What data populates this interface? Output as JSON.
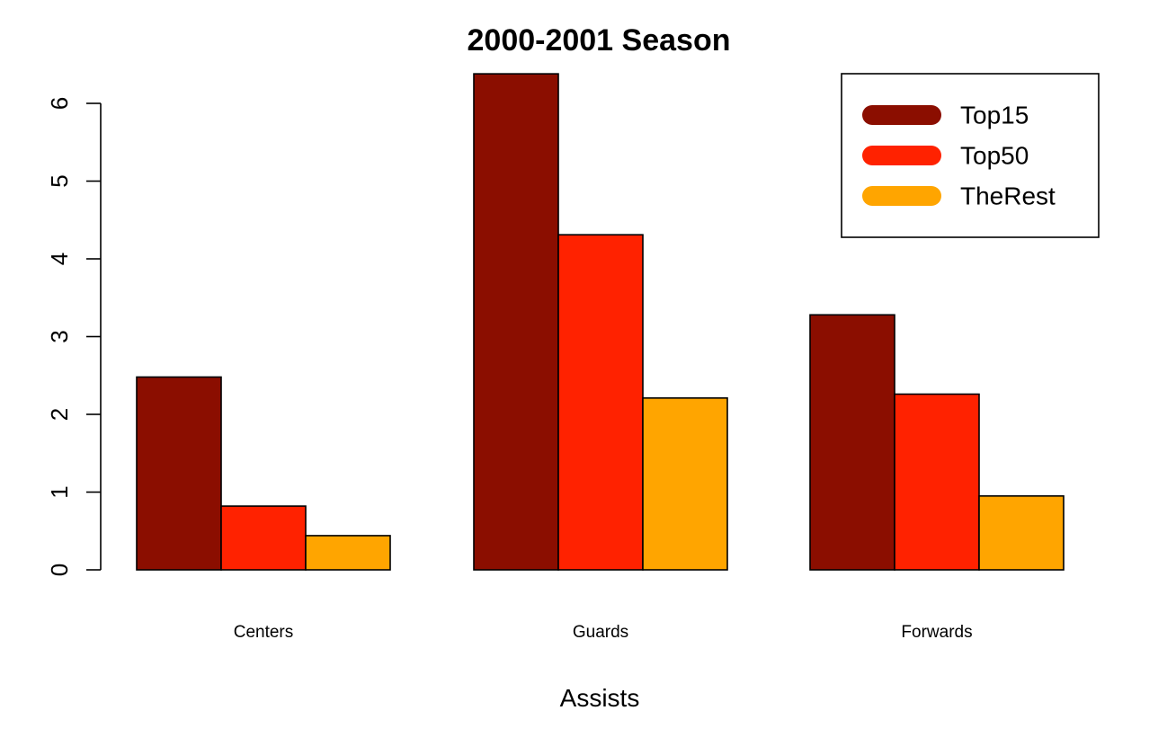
{
  "chart_data": {
    "type": "bar",
    "title": "2000-2001 Season",
    "xlabel": "Assists",
    "ylabel": "",
    "ylim": [
      0,
      6
    ],
    "yticks": [
      0,
      1,
      2,
      3,
      4,
      5,
      6
    ],
    "categories": [
      "Centers",
      "Guards",
      "Forwards"
    ],
    "series": [
      {
        "name": "Top15",
        "color": "#8B0E00",
        "values": [
          2.48,
          6.38,
          3.28
        ]
      },
      {
        "name": "Top50",
        "color": "#FF2200",
        "values": [
          0.82,
          4.31,
          2.26
        ]
      },
      {
        "name": "TheRest",
        "color": "#FFA500",
        "values": [
          0.44,
          2.21,
          0.95
        ]
      }
    ],
    "legend": {
      "position": "top-right"
    },
    "grid": false
  }
}
